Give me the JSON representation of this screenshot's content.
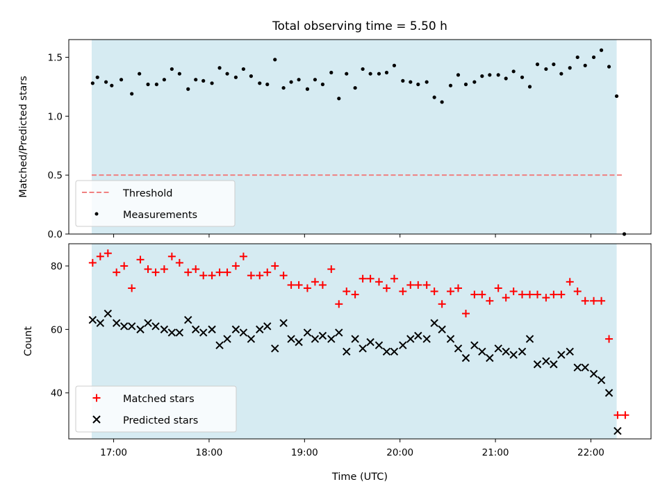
{
  "chart_data": [
    {
      "type": "scatter",
      "title": "Total observing time = 5.50 h",
      "ylabel": "Matched/Predicted stars",
      "ylim": [
        0,
        1.65
      ],
      "yticks": [
        0.0,
        0.5,
        1.0,
        1.5
      ],
      "ytick_labels": [
        "0.0",
        "0.5",
        "1.0",
        "1.5"
      ],
      "xlim": [
        16.53,
        22.63
      ],
      "xticks": [
        17,
        18,
        19,
        20,
        21,
        22
      ],
      "grid": false,
      "legend_position": "lower-left",
      "observing_window": [
        16.77,
        22.27
      ],
      "observing_window_color": "#add8e6",
      "threshold": {
        "name": "Threshold",
        "value": 0.5,
        "x_range": [
          16.77,
          22.33
        ],
        "color": "#f08080"
      },
      "series": [
        {
          "name": "Measurements",
          "marker": "dot",
          "color": "#000000",
          "x": [
            16.78,
            16.83,
            16.92,
            16.98,
            17.08,
            17.19,
            17.27,
            17.36,
            17.45,
            17.53,
            17.61,
            17.69,
            17.78,
            17.86,
            17.94,
            18.03,
            18.11,
            18.19,
            18.28,
            18.36,
            18.44,
            18.53,
            18.61,
            18.69,
            18.78,
            18.86,
            18.94,
            19.03,
            19.11,
            19.19,
            19.28,
            19.36,
            19.44,
            19.53,
            19.61,
            19.69,
            19.78,
            19.86,
            19.94,
            20.03,
            20.11,
            20.19,
            20.28,
            20.36,
            20.44,
            20.53,
            20.61,
            20.69,
            20.78,
            20.86,
            20.94,
            21.03,
            21.11,
            21.19,
            21.28,
            21.36,
            21.44,
            21.53,
            21.61,
            21.69,
            21.78,
            21.86,
            21.94,
            22.03,
            22.11,
            22.19,
            22.27,
            22.35
          ],
          "y": [
            1.28,
            1.33,
            1.29,
            1.26,
            1.31,
            1.19,
            1.36,
            1.27,
            1.27,
            1.31,
            1.4,
            1.36,
            1.23,
            1.31,
            1.3,
            1.28,
            1.41,
            1.36,
            1.33,
            1.4,
            1.34,
            1.28,
            1.27,
            1.48,
            1.24,
            1.29,
            1.31,
            1.23,
            1.31,
            1.27,
            1.37,
            1.15,
            1.36,
            1.24,
            1.4,
            1.36,
            1.36,
            1.37,
            1.43,
            1.3,
            1.29,
            1.27,
            1.29,
            1.16,
            1.12,
            1.26,
            1.35,
            1.27,
            1.29,
            1.34,
            1.35,
            1.35,
            1.32,
            1.38,
            1.33,
            1.25,
            1.44,
            1.4,
            1.44,
            1.36,
            1.41,
            1.5,
            1.43,
            1.5,
            1.56,
            1.42,
            1.17,
            0.0
          ]
        }
      ]
    },
    {
      "type": "scatter",
      "xlabel": "Time (UTC)",
      "ylabel": "Count",
      "ylim": [
        25.5,
        87
      ],
      "yticks": [
        40,
        60,
        80
      ],
      "ytick_labels": [
        "40",
        "60",
        "80"
      ],
      "xlim": [
        16.53,
        22.63
      ],
      "xticks": [
        17,
        18,
        19,
        20,
        21,
        22
      ],
      "xtick_labels": [
        "17:00",
        "18:00",
        "19:00",
        "20:00",
        "21:00",
        "22:00"
      ],
      "grid": false,
      "legend_position": "lower-left",
      "observing_window": [
        16.77,
        22.27
      ],
      "observing_window_color": "#add8e6",
      "series": [
        {
          "name": "Matched stars",
          "marker": "plus",
          "color": "#ff0000",
          "x": [
            16.78,
            16.86,
            16.94,
            17.03,
            17.11,
            17.19,
            17.28,
            17.36,
            17.44,
            17.53,
            17.61,
            17.69,
            17.78,
            17.86,
            17.94,
            18.03,
            18.11,
            18.19,
            18.28,
            18.36,
            18.44,
            18.53,
            18.61,
            18.69,
            18.78,
            18.86,
            18.94,
            19.03,
            19.11,
            19.19,
            19.28,
            19.36,
            19.44,
            19.53,
            19.61,
            19.69,
            19.78,
            19.86,
            19.94,
            20.03,
            20.11,
            20.19,
            20.28,
            20.36,
            20.44,
            20.53,
            20.61,
            20.69,
            20.78,
            20.86,
            20.94,
            21.03,
            21.11,
            21.19,
            21.28,
            21.36,
            21.44,
            21.53,
            21.61,
            21.69,
            21.78,
            21.86,
            21.94,
            22.03,
            22.11,
            22.19,
            22.28,
            22.36
          ],
          "y": [
            81,
            83,
            84,
            78,
            80,
            73,
            82,
            79,
            78,
            79,
            83,
            81,
            78,
            79,
            77,
            77,
            78,
            78,
            80,
            83,
            77,
            77,
            78,
            80,
            77,
            74,
            74,
            73,
            75,
            74,
            79,
            68,
            72,
            71,
            76,
            76,
            75,
            73,
            76,
            72,
            74,
            74,
            74,
            72,
            68,
            72,
            73,
            65,
            71,
            71,
            69,
            73,
            70,
            72,
            71,
            71,
            71,
            70,
            71,
            71,
            75,
            72,
            69,
            69,
            69,
            57,
            33,
            33
          ]
        },
        {
          "name": "Predicted stars",
          "marker": "x",
          "color": "#000000",
          "x": [
            16.78,
            16.86,
            16.94,
            17.03,
            17.11,
            17.19,
            17.28,
            17.36,
            17.44,
            17.53,
            17.61,
            17.69,
            17.78,
            17.86,
            17.94,
            18.03,
            18.11,
            18.19,
            18.28,
            18.36,
            18.44,
            18.53,
            18.61,
            18.69,
            18.78,
            18.86,
            18.94,
            19.03,
            19.11,
            19.19,
            19.28,
            19.36,
            19.44,
            19.53,
            19.61,
            19.69,
            19.78,
            19.86,
            19.94,
            20.03,
            20.11,
            20.19,
            20.28,
            20.36,
            20.44,
            20.53,
            20.61,
            20.69,
            20.78,
            20.86,
            20.94,
            21.03,
            21.11,
            21.19,
            21.28,
            21.36,
            21.44,
            21.53,
            21.61,
            21.69,
            21.78,
            21.86,
            21.94,
            22.03,
            22.11,
            22.19,
            22.28
          ],
          "y": [
            63,
            62,
            65,
            62,
            61,
            61,
            60,
            62,
            61,
            60,
            59,
            59,
            63,
            60,
            59,
            60,
            55,
            57,
            60,
            59,
            57,
            60,
            61,
            54,
            62,
            57,
            56,
            59,
            57,
            58,
            57,
            59,
            53,
            57,
            54,
            56,
            55,
            53,
            53,
            55,
            57,
            58,
            57,
            62,
            60,
            57,
            54,
            51,
            55,
            53,
            51,
            54,
            53,
            52,
            53,
            57,
            49,
            50,
            49,
            52,
            53,
            48,
            48,
            46,
            44,
            40,
            28
          ]
        }
      ]
    }
  ]
}
